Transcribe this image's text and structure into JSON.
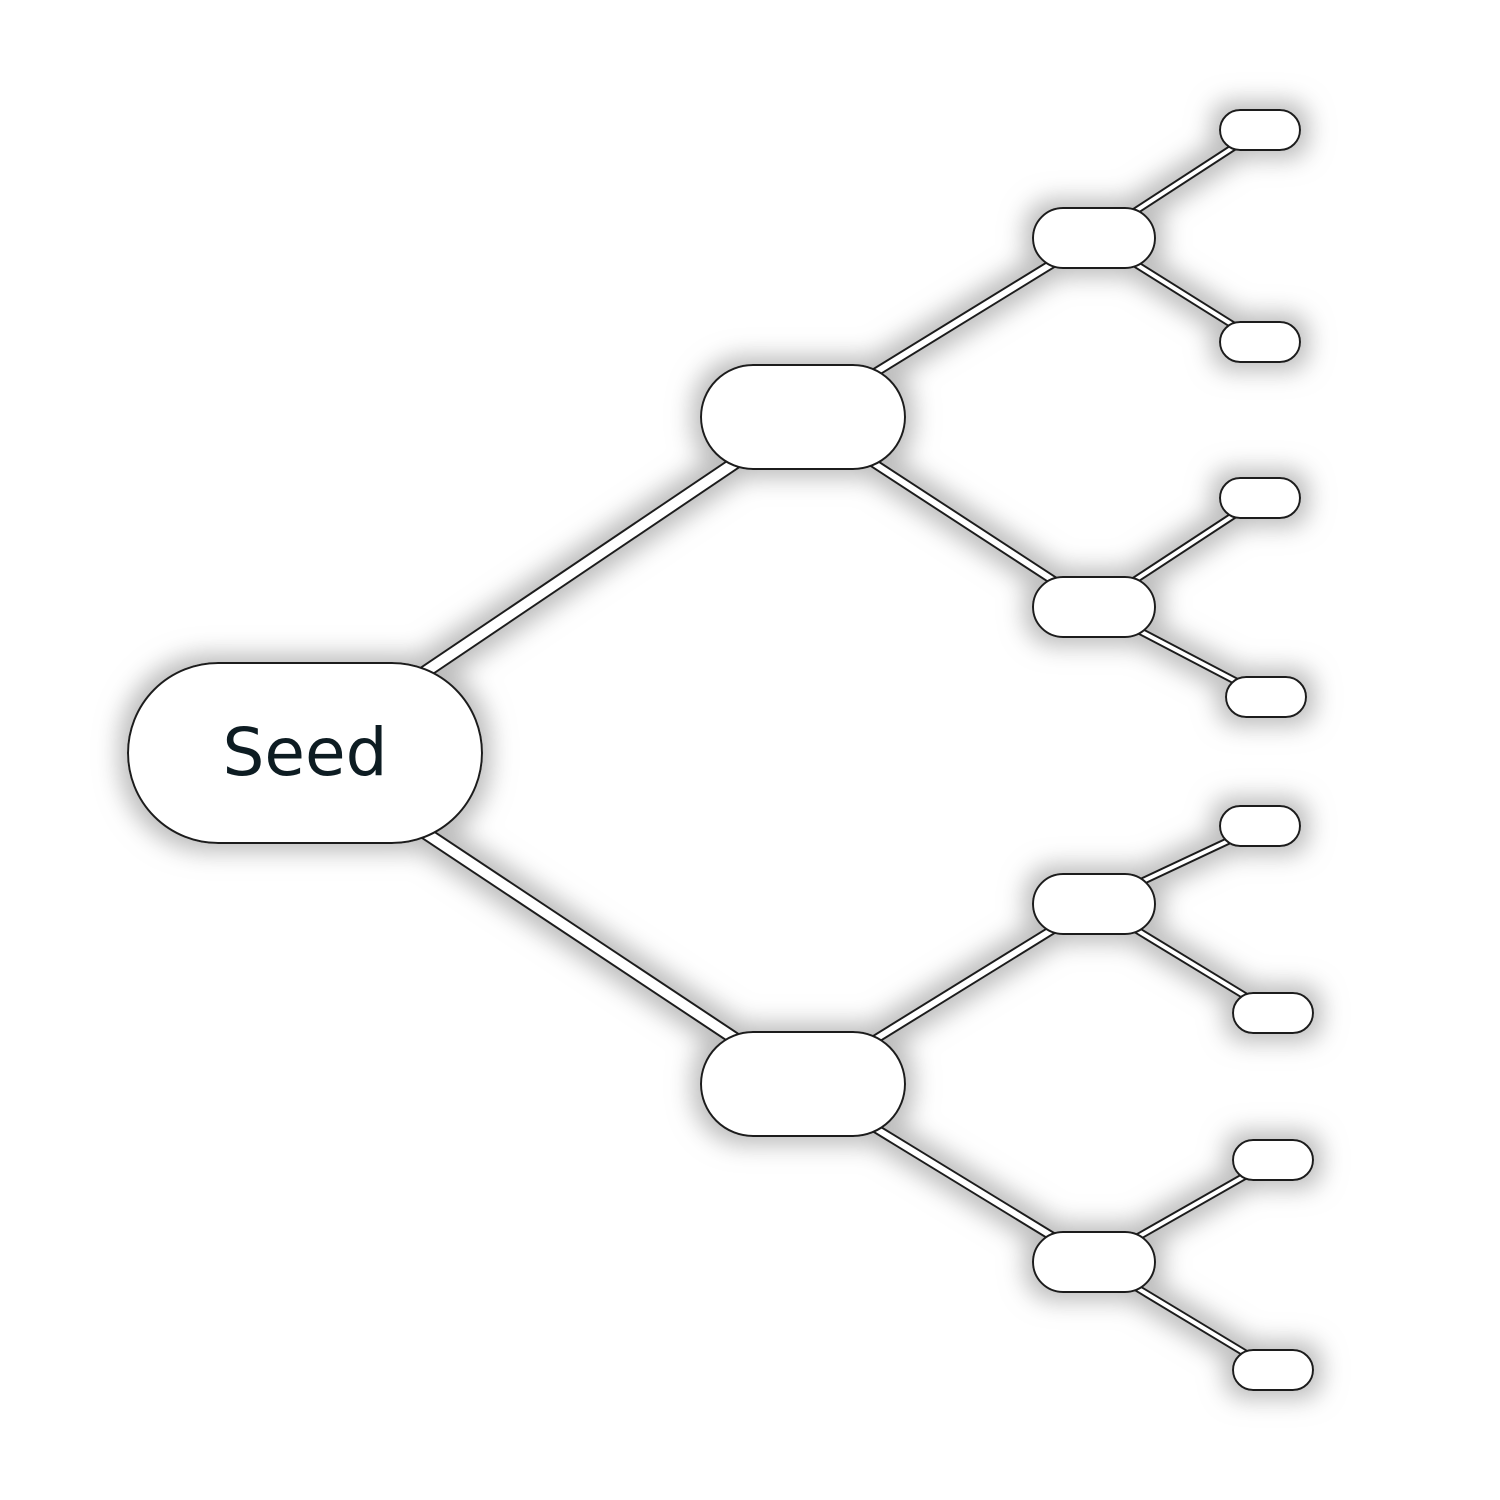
{
  "diagram": {
    "type": "tree",
    "colors": {
      "node_fill": "#ffffff",
      "node_stroke": "#1a1a1a",
      "label": "#0e1c22",
      "glow": "#b5b5b5"
    },
    "nodes": [
      {
        "id": "root",
        "label": "Seed",
        "level": 0
      },
      {
        "id": "b1",
        "label": "",
        "level": 1
      },
      {
        "id": "b2",
        "label": "",
        "level": 1
      },
      {
        "id": "b1-1",
        "label": "",
        "level": 2
      },
      {
        "id": "b1-2",
        "label": "",
        "level": 2
      },
      {
        "id": "b2-1",
        "label": "",
        "level": 2
      },
      {
        "id": "b2-2",
        "label": "",
        "level": 2
      },
      {
        "id": "b1-1-1",
        "label": "",
        "level": 3
      },
      {
        "id": "b1-1-2",
        "label": "",
        "level": 3
      },
      {
        "id": "b1-2-1",
        "label": "",
        "level": 3
      },
      {
        "id": "b1-2-2",
        "label": "",
        "level": 3
      },
      {
        "id": "b2-1-1",
        "label": "",
        "level": 3
      },
      {
        "id": "b2-1-2",
        "label": "",
        "level": 3
      },
      {
        "id": "b2-2-1",
        "label": "",
        "level": 3
      },
      {
        "id": "b2-2-2",
        "label": "",
        "level": 3
      }
    ],
    "edges": [
      {
        "from": "root",
        "to": "b1"
      },
      {
        "from": "root",
        "to": "b2"
      },
      {
        "from": "b1",
        "to": "b1-1"
      },
      {
        "from": "b1",
        "to": "b1-2"
      },
      {
        "from": "b2",
        "to": "b2-1"
      },
      {
        "from": "b2",
        "to": "b2-2"
      },
      {
        "from": "b1-1",
        "to": "b1-1-1"
      },
      {
        "from": "b1-1",
        "to": "b1-1-2"
      },
      {
        "from": "b1-2",
        "to": "b1-2-1"
      },
      {
        "from": "b1-2",
        "to": "b1-2-2"
      },
      {
        "from": "b2-1",
        "to": "b2-1-1"
      },
      {
        "from": "b2-1",
        "to": "b2-1-2"
      },
      {
        "from": "b2-2",
        "to": "b2-2-1"
      },
      {
        "from": "b2-2",
        "to": "b2-2-2"
      }
    ]
  }
}
